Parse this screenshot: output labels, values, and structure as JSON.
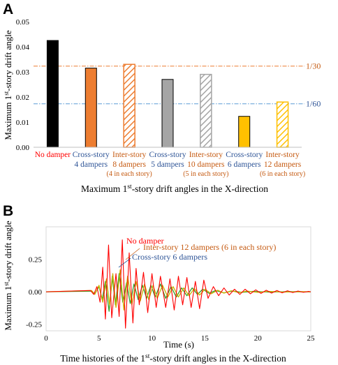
{
  "panel_a_letter": "A",
  "panel_b_letter": "B",
  "colors": {
    "no_damper": "#000000",
    "cross4": "#ed7d31",
    "inter8": "#ed7d31",
    "cross5": "#a5a5a5",
    "inter10": "#a5a5a5",
    "cross6": "#ffc000",
    "inter12": "#ffc000",
    "label_red": "#ff0000",
    "label_blue": "#2f5597",
    "label_brown": "#c55a11",
    "line_1_30": "#ed7d31",
    "line_1_60": "#5b9bd5",
    "ts_no_damper": "#ff0000",
    "ts_inter12": "#c9b200",
    "ts_cross6": "#33a02c"
  },
  "chart_data": [
    {
      "type": "bar",
      "ylabel": "Maximum 1st-story drift angle",
      "ylabel_main": "Maximum 1",
      "ylabel_sup": "st",
      "ylabel_rest": "-story drift angle",
      "ylim": [
        0,
        0.05
      ],
      "yticks": [
        "0.00",
        "0.01",
        "0.02",
        "0.03",
        "0.04",
        "0.05"
      ],
      "yticks_values": [
        0,
        0.01,
        0.02,
        0.03,
        0.04,
        0.05
      ],
      "grid": false,
      "bars": [
        {
          "key": "no_damper",
          "value": 0.0425,
          "hatched": false,
          "label_lines": [
            "No damper"
          ],
          "sub_line": "",
          "label_color": "label_red"
        },
        {
          "key": "cross4",
          "value": 0.0315,
          "hatched": false,
          "label_lines": [
            "Cross-story",
            "4 dampers"
          ],
          "sub_line": "",
          "label_color": "label_blue"
        },
        {
          "key": "inter8",
          "value": 0.033,
          "hatched": true,
          "label_lines": [
            "Inter-story",
            "8 dampers"
          ],
          "sub_line": "(4 in each story)",
          "label_color": "label_brown"
        },
        {
          "key": "cross5",
          "value": 0.027,
          "hatched": false,
          "label_lines": [
            "Cross-story",
            "5 dampers"
          ],
          "sub_line": "",
          "label_color": "label_blue"
        },
        {
          "key": "inter10",
          "value": 0.029,
          "hatched": true,
          "label_lines": [
            "Inter-story",
            "10 dampers"
          ],
          "sub_line": "(5 in each story)",
          "label_color": "label_brown"
        },
        {
          "key": "cross6",
          "value": 0.0123,
          "hatched": false,
          "label_lines": [
            "Cross-story",
            "6 dampers"
          ],
          "sub_line": "",
          "label_color": "label_blue"
        },
        {
          "key": "inter12",
          "value": 0.018,
          "hatched": true,
          "label_lines": [
            "Inter-story",
            "12 dampers"
          ],
          "sub_line": "(6 in each story)",
          "label_color": "label_brown"
        }
      ],
      "reference_lines": [
        {
          "label": "1/30",
          "value": 0.0323,
          "color": "line_1_30",
          "label_color": "label_brown"
        },
        {
          "label": "1/60",
          "value": 0.0173,
          "color": "line_1_60",
          "label_color": "label_blue"
        }
      ],
      "caption_main": "Maximum 1",
      "caption_sup": "st",
      "caption_rest": "-story drift angles in the X-direction"
    },
    {
      "type": "line",
      "xlabel": "Time (s)",
      "ylabel_main": "Maximum 1",
      "ylabel_sup": "st",
      "ylabel_rest": "-story drift angle",
      "xlim": [
        0,
        25
      ],
      "ylim": [
        -0.3,
        0.5
      ],
      "xticks": [
        "0",
        "5",
        "10",
        "15",
        "20",
        "25"
      ],
      "xticks_values": [
        0,
        5,
        10,
        15,
        20,
        25
      ],
      "yticks": [
        "-0.25",
        "0.00",
        "0.25"
      ],
      "yticks_values": [
        -0.25,
        0,
        0.25
      ],
      "grid": false,
      "series": [
        {
          "name": "No damper",
          "color": "ts_no_damper",
          "label_color": "label_red",
          "peaks": [
            [
              4.2,
              0.01
            ],
            [
              4.5,
              -0.02
            ],
            [
              4.8,
              0.04
            ],
            [
              5.1,
              -0.08
            ],
            [
              5.35,
              0.19
            ],
            [
              5.6,
              -0.21
            ],
            [
              5.9,
              0.36
            ],
            [
              6.2,
              -0.2
            ],
            [
              6.6,
              0.14
            ],
            [
              6.9,
              -0.19
            ],
            [
              7.2,
              0.4
            ],
            [
              7.5,
              -0.28
            ],
            [
              7.85,
              0.3
            ],
            [
              8.2,
              -0.24
            ],
            [
              8.5,
              0.18
            ],
            [
              8.8,
              -0.1
            ],
            [
              9.2,
              0.15
            ],
            [
              9.6,
              -0.16
            ],
            [
              10.0,
              0.14
            ],
            [
              10.4,
              -0.12
            ],
            [
              10.8,
              0.12
            ],
            [
              11.3,
              -0.12
            ],
            [
              11.7,
              0.1
            ],
            [
              12.1,
              -0.14
            ],
            [
              12.5,
              0.12
            ],
            [
              12.9,
              -0.1
            ],
            [
              13.3,
              0.11
            ],
            [
              13.7,
              -0.12
            ],
            [
              14.1,
              0.08
            ],
            [
              14.5,
              -0.13
            ],
            [
              14.9,
              0.09
            ],
            [
              15.3,
              -0.05
            ],
            [
              15.8,
              0.04
            ],
            [
              16.3,
              -0.03
            ],
            [
              16.8,
              0.03
            ],
            [
              17.3,
              -0.025
            ],
            [
              17.8,
              0.02
            ],
            [
              18.3,
              -0.02
            ],
            [
              18.8,
              0.02
            ],
            [
              19.3,
              -0.015
            ],
            [
              19.8,
              0.015
            ],
            [
              20.3,
              -0.012
            ],
            [
              20.8,
              0.012
            ],
            [
              21.3,
              -0.01
            ],
            [
              21.8,
              0.01
            ],
            [
              22.3,
              -0.008
            ],
            [
              22.8,
              0.008
            ],
            [
              23.3,
              -0.006
            ],
            [
              23.8,
              0.006
            ],
            [
              24.3,
              -0.004
            ],
            [
              24.8,
              0.003
            ]
          ]
        },
        {
          "name": "Inter-story 12 dampers (6 in each story)",
          "color": "ts_inter12",
          "label_color": "label_brown",
          "peaks": [
            [
              4.3,
              0.01
            ],
            [
              4.6,
              -0.02
            ],
            [
              5.0,
              0.05
            ],
            [
              5.35,
              -0.08
            ],
            [
              5.7,
              0.1
            ],
            [
              6.0,
              -0.1
            ],
            [
              6.3,
              0.14
            ],
            [
              6.6,
              -0.12
            ],
            [
              7.0,
              0.17
            ],
            [
              7.35,
              -0.14
            ],
            [
              7.7,
              0.12
            ],
            [
              8.1,
              -0.1
            ],
            [
              8.5,
              0.08
            ],
            [
              8.9,
              -0.07
            ],
            [
              9.3,
              0.06
            ],
            [
              9.7,
              -0.06
            ],
            [
              10.1,
              0.05
            ],
            [
              10.5,
              -0.05
            ],
            [
              11.0,
              0.05
            ],
            [
              11.5,
              -0.04
            ],
            [
              12.0,
              0.04
            ],
            [
              12.5,
              -0.04
            ],
            [
              13.0,
              0.03
            ],
            [
              13.5,
              -0.03
            ],
            [
              14.0,
              0.025
            ],
            [
              14.5,
              -0.025
            ],
            [
              15.0,
              0.02
            ],
            [
              15.6,
              -0.015
            ],
            [
              16.2,
              0.012
            ],
            [
              16.8,
              -0.01
            ],
            [
              17.5,
              0.008
            ],
            [
              18.2,
              -0.006
            ],
            [
              19.0,
              0.005
            ],
            [
              20.0,
              -0.004
            ],
            [
              21.0,
              0.003
            ],
            [
              22.5,
              -0.002
            ],
            [
              24.0,
              0.001
            ],
            [
              24.9,
              0
            ]
          ]
        },
        {
          "name": "Cross-story 6 dampers",
          "color": "ts_cross6",
          "label_color": "label_blue",
          "peaks": [
            [
              4.3,
              0.005
            ],
            [
              4.6,
              -0.015
            ],
            [
              5.0,
              0.04
            ],
            [
              5.3,
              -0.06
            ],
            [
              5.6,
              0.08
            ],
            [
              5.95,
              -0.15
            ],
            [
              6.25,
              0.12
            ],
            [
              6.55,
              -0.1
            ],
            [
              6.9,
              0.14
            ],
            [
              7.25,
              -0.08
            ],
            [
              7.6,
              0.07
            ],
            [
              7.95,
              -0.09
            ],
            [
              8.3,
              0.06
            ],
            [
              8.7,
              -0.06
            ],
            [
              9.1,
              0.05
            ],
            [
              9.5,
              -0.05
            ],
            [
              9.9,
              0.05
            ],
            [
              10.3,
              -0.04
            ],
            [
              10.8,
              0.06
            ],
            [
              11.3,
              -0.05
            ],
            [
              11.8,
              0.04
            ],
            [
              12.3,
              -0.04
            ],
            [
              12.8,
              0.03
            ],
            [
              13.3,
              -0.03
            ],
            [
              13.8,
              0.03
            ],
            [
              14.3,
              -0.02
            ],
            [
              14.8,
              0.02
            ],
            [
              15.4,
              -0.012
            ],
            [
              16.0,
              0.01
            ],
            [
              16.8,
              -0.008
            ],
            [
              17.6,
              0.006
            ],
            [
              18.5,
              -0.004
            ],
            [
              19.5,
              0.003
            ],
            [
              21.0,
              -0.002
            ],
            [
              23.0,
              0.001
            ],
            [
              24.9,
              0
            ]
          ]
        }
      ],
      "caption_main": "Time histories of the 1",
      "caption_sup": "st",
      "caption_rest": "-story drift angles in the X-direction"
    }
  ]
}
